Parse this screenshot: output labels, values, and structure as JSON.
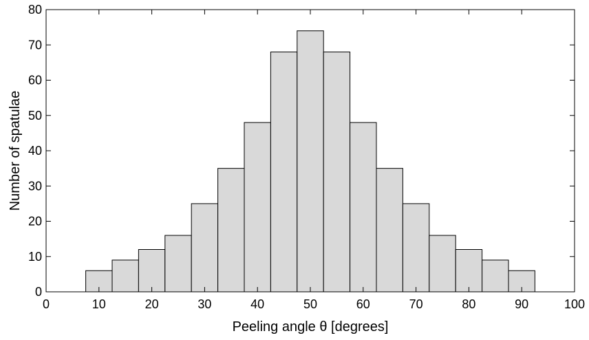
{
  "chart_data": {
    "type": "bar",
    "xlabel": "Peeling angle θ [degrees]",
    "ylabel": "Number of spatulae",
    "xlim": [
      0,
      100
    ],
    "ylim": [
      0,
      80
    ],
    "xticks": [
      0,
      10,
      20,
      30,
      40,
      50,
      60,
      70,
      80,
      90,
      100
    ],
    "yticks": [
      0,
      10,
      20,
      30,
      40,
      50,
      60,
      70,
      80
    ],
    "bin_width": 5,
    "bins": [
      {
        "center": 10,
        "value": 6
      },
      {
        "center": 15,
        "value": 9
      },
      {
        "center": 20,
        "value": 12
      },
      {
        "center": 25,
        "value": 16
      },
      {
        "center": 30,
        "value": 25
      },
      {
        "center": 35,
        "value": 35
      },
      {
        "center": 40,
        "value": 48
      },
      {
        "center": 45,
        "value": 68
      },
      {
        "center": 50,
        "value": 74
      },
      {
        "center": 55,
        "value": 68
      },
      {
        "center": 60,
        "value": 48
      },
      {
        "center": 65,
        "value": 35
      },
      {
        "center": 70,
        "value": 25
      },
      {
        "center": 75,
        "value": 16
      },
      {
        "center": 80,
        "value": 12
      },
      {
        "center": 85,
        "value": 9
      },
      {
        "center": 90,
        "value": 6
      }
    ],
    "bar_color": "#d9d9d9",
    "grid": false
  }
}
